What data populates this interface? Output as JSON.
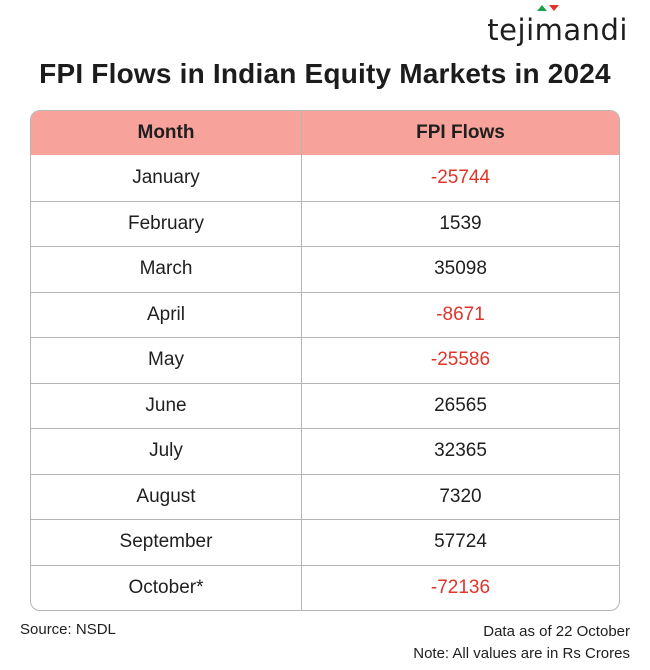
{
  "brand": {
    "logo_parts": [
      "teji",
      "m",
      "andi"
    ],
    "logo_color": "#1e1e1e",
    "accent_green": "#16a34a",
    "accent_red": "#e0342b"
  },
  "title": "FPI Flows in Indian Equity Markets in 2024",
  "table": {
    "headers": [
      "Month",
      "FPI Flows"
    ],
    "header_bg": "#f7a29b",
    "negative_color": "#e0342b"
  },
  "chart_data": {
    "type": "table",
    "title": "FPI Flows in Indian Equity Markets in 2024",
    "columns": [
      "Month",
      "FPI Flows"
    ],
    "rows": [
      [
        "January",
        "-25744"
      ],
      [
        "February",
        "1539"
      ],
      [
        "March",
        "35098"
      ],
      [
        "April",
        "-8671"
      ],
      [
        "May",
        "-25586"
      ],
      [
        "June",
        "26565"
      ],
      [
        "July",
        "32365"
      ],
      [
        "August",
        "7320"
      ],
      [
        "September",
        "57724"
      ],
      [
        "October*",
        "-72136"
      ]
    ]
  },
  "footer": {
    "source": "Source: NSDL",
    "data_as_of": "Data as of 22 October",
    "note": "Note: All values are in Rs Crores"
  }
}
